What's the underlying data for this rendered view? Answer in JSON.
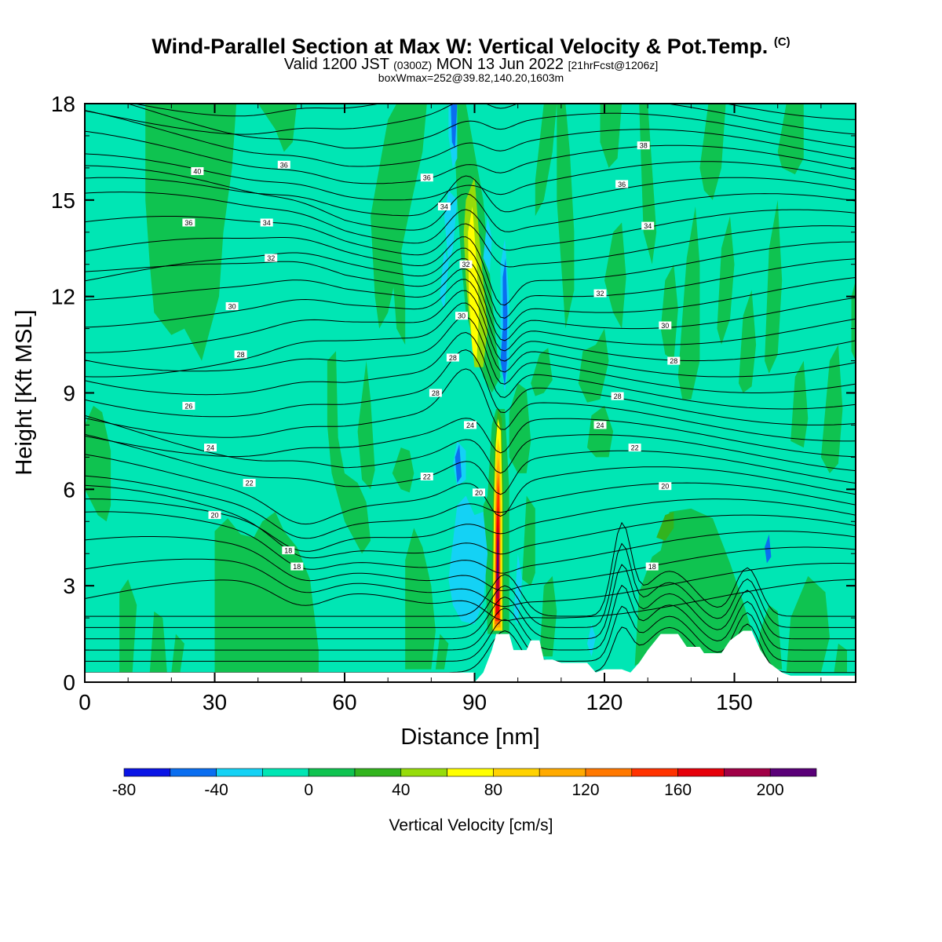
{
  "title": {
    "main": "Wind-Parallel Section at Max W: Vertical Velocity & Pot.Temp.",
    "copyright": "(C)",
    "valid_prefix": "Valid 1200 JST",
    "valid_utc": "(0300Z)",
    "valid_date": "MON 13 Jun 2022",
    "forecast": "[21hrFcst@1206z]",
    "boxline": "boxWmax=252@39.82,140.20,1603m"
  },
  "chart_data": {
    "type": "contour",
    "xlabel": "Distance [nm]",
    "ylabel": "Height [Kft MSL]",
    "xlim": [
      0,
      178
    ],
    "ylim": [
      0,
      18
    ],
    "x_ticks": [
      0,
      30,
      60,
      90,
      120,
      150
    ],
    "y_ticks": [
      0,
      3,
      6,
      9,
      12,
      15,
      18
    ],
    "colorbar": {
      "label": "Vertical Velocity [cm/s]",
      "ticks": [
        -80,
        -40,
        0,
        40,
        80,
        120,
        160,
        200
      ],
      "levels": [
        -80,
        -60,
        -40,
        -20,
        0,
        20,
        40,
        60,
        80,
        100,
        120,
        140,
        160,
        180,
        200,
        220
      ],
      "colors": [
        "#0a14e6",
        "#0a6ef0",
        "#14d2f5",
        "#00e6b4",
        "#0fc350",
        "#32b41e",
        "#96dc0a",
        "#ffff00",
        "#ffd200",
        "#ffaa00",
        "#ff7800",
        "#ff3200",
        "#e6000a",
        "#a00046",
        "#5a0078"
      ]
    },
    "background_level": "#00e6b4",
    "max_updraft": {
      "x": 95.5,
      "y_range": [
        1.5,
        8.5
      ],
      "peak_cms": 252
    },
    "terrain": [
      [
        90,
        0
      ],
      [
        92,
        0.3
      ],
      [
        94,
        1.0
      ],
      [
        95,
        1.5
      ],
      [
        98,
        1.5
      ],
      [
        99,
        1.0
      ],
      [
        102,
        1.0
      ],
      [
        103,
        1.3
      ],
      [
        105,
        1.3
      ],
      [
        106,
        0.7
      ],
      [
        108,
        0.7
      ],
      [
        110,
        0.6
      ],
      [
        116,
        0.6
      ],
      [
        118,
        0.3
      ],
      [
        120,
        0.4
      ],
      [
        124,
        0.4
      ],
      [
        126,
        0.3
      ],
      [
        128,
        0.6
      ],
      [
        130,
        1.0
      ],
      [
        133,
        1.5
      ],
      [
        137,
        1.5
      ],
      [
        139,
        1.1
      ],
      [
        142,
        1.1
      ],
      [
        143,
        0.9
      ],
      [
        147,
        0.9
      ],
      [
        149,
        1.3
      ],
      [
        152,
        1.6
      ],
      [
        154,
        1.6
      ],
      [
        156,
        1.0
      ],
      [
        158,
        0.6
      ],
      [
        161,
        0.3
      ],
      [
        163,
        0.2
      ],
      [
        178,
        0.2
      ]
    ],
    "theta_contour_labels": [
      {
        "text": "40",
        "x": 26,
        "y": 15.9
      },
      {
        "text": "36",
        "x": 46,
        "y": 16.1
      },
      {
        "text": "36",
        "x": 24,
        "y": 14.3
      },
      {
        "text": "34",
        "x": 42,
        "y": 14.3
      },
      {
        "text": "32",
        "x": 43,
        "y": 13.2
      },
      {
        "text": "30",
        "x": 34,
        "y": 11.7
      },
      {
        "text": "28",
        "x": 36,
        "y": 10.2
      },
      {
        "text": "26",
        "x": 24,
        "y": 8.6
      },
      {
        "text": "24",
        "x": 29,
        "y": 7.3
      },
      {
        "text": "22",
        "x": 38,
        "y": 6.2
      },
      {
        "text": "20",
        "x": 30,
        "y": 5.2
      },
      {
        "text": "18",
        "x": 47,
        "y": 4.1
      },
      {
        "text": "18",
        "x": 49,
        "y": 3.6
      },
      {
        "text": "36",
        "x": 79,
        "y": 15.7
      },
      {
        "text": "34",
        "x": 83,
        "y": 14.8
      },
      {
        "text": "32",
        "x": 88,
        "y": 13.0
      },
      {
        "text": "30",
        "x": 87,
        "y": 11.4
      },
      {
        "text": "28",
        "x": 85,
        "y": 10.1
      },
      {
        "text": "28",
        "x": 81,
        "y": 9.0
      },
      {
        "text": "24",
        "x": 89,
        "y": 8.0
      },
      {
        "text": "22",
        "x": 79,
        "y": 6.4
      },
      {
        "text": "20",
        "x": 91,
        "y": 5.9
      },
      {
        "text": "38",
        "x": 129,
        "y": 16.7
      },
      {
        "text": "36",
        "x": 124,
        "y": 15.5
      },
      {
        "text": "34",
        "x": 130,
        "y": 14.2
      },
      {
        "text": "32",
        "x": 119,
        "y": 12.1
      },
      {
        "text": "30",
        "x": 134,
        "y": 11.1
      },
      {
        "text": "28",
        "x": 136,
        "y": 10.0
      },
      {
        "text": "28",
        "x": 123,
        "y": 8.9
      },
      {
        "text": "24",
        "x": 119,
        "y": 8.0
      },
      {
        "text": "22",
        "x": 127,
        "y": 7.3
      },
      {
        "text": "20",
        "x": 134,
        "y": 6.1
      },
      {
        "text": "18",
        "x": 131,
        "y": 3.6
      }
    ]
  }
}
